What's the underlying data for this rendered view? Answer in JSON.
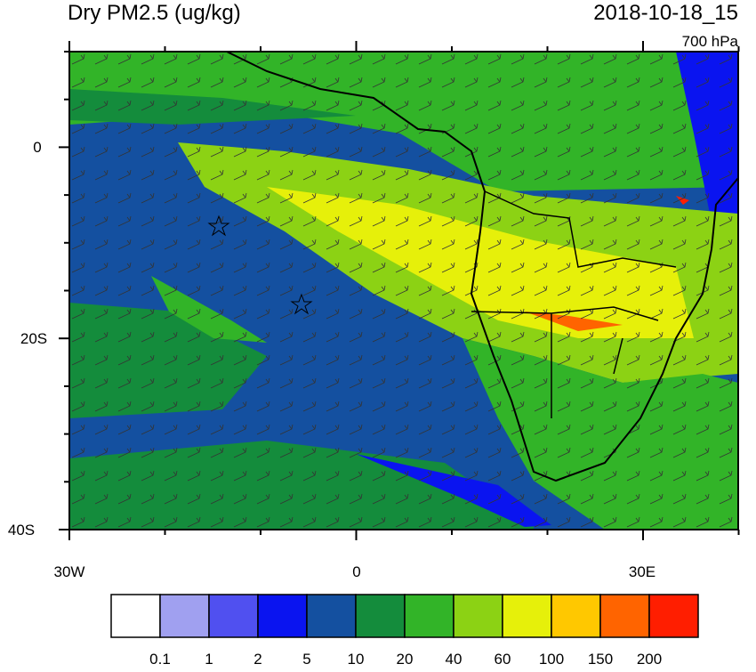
{
  "header": {
    "title": "Dry PM2.5 (ug/kg)",
    "time": "2018-10-18_15",
    "level": "700 hPa"
  },
  "map": {
    "lat_labels": [
      "0",
      "20S",
      "40S"
    ],
    "lon_labels": [
      "30W",
      "0",
      "30E"
    ]
  },
  "colorbar": {
    "levels": [
      "0.1",
      "1",
      "2",
      "5",
      "10",
      "20",
      "40",
      "60",
      "100",
      "150",
      "200"
    ],
    "colors": [
      "#ffffff",
      "#a0a0f0",
      "#5050f0",
      "#0a14f0",
      "#1450a0",
      "#148c3c",
      "#32b428",
      "#8cd214",
      "#e6f00a",
      "#ffc800",
      "#ff6400",
      "#ff1e00"
    ]
  }
}
